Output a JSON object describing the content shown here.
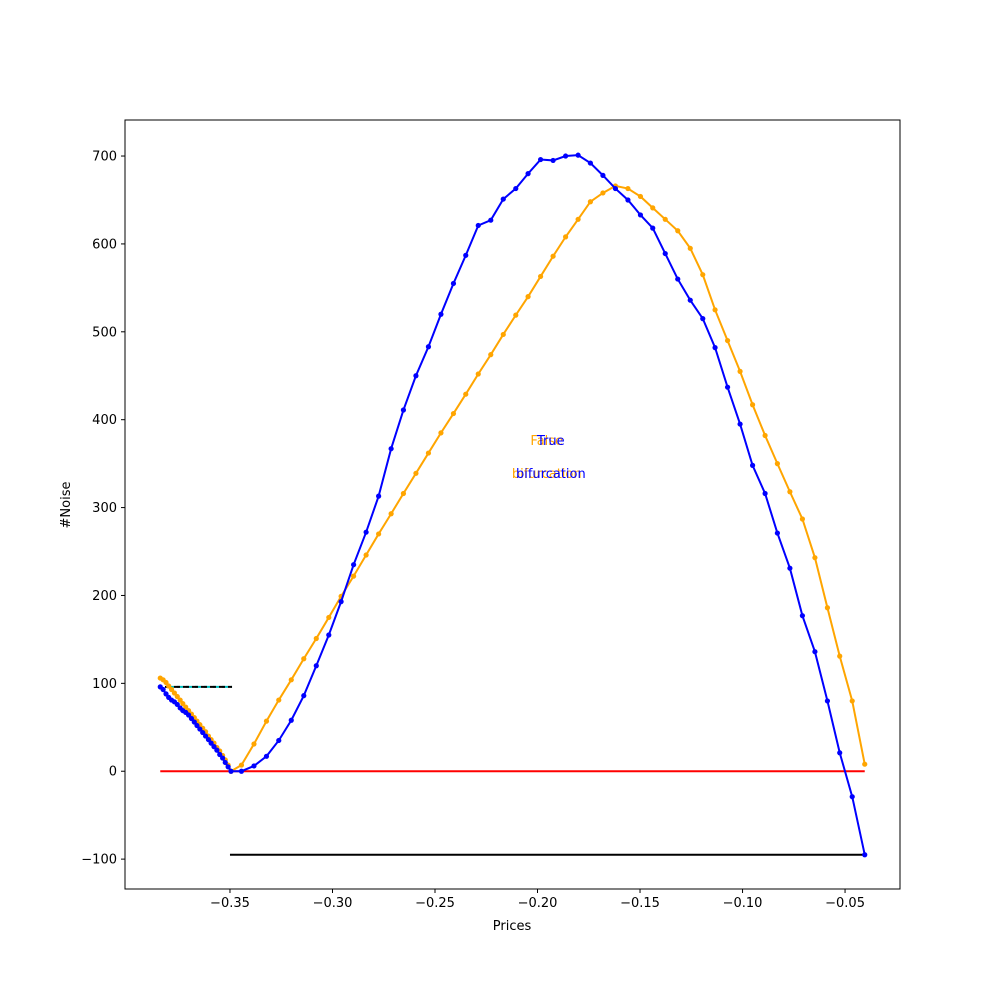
{
  "chart_data": {
    "type": "line",
    "xlabel": "Prices",
    "ylabel": "#Noise",
    "xlim": [
      -0.4012,
      -0.0232
    ],
    "ylim": [
      -134,
      741
    ],
    "xticks": [
      {
        "value": -0.35,
        "label": "−0.35"
      },
      {
        "value": -0.3,
        "label": "−0.30"
      },
      {
        "value": -0.25,
        "label": "−0.25"
      },
      {
        "value": -0.2,
        "label": "−0.20"
      },
      {
        "value": -0.15,
        "label": "−0.15"
      },
      {
        "value": -0.1,
        "label": "−0.10"
      },
      {
        "value": -0.05,
        "label": "−0.05"
      }
    ],
    "yticks": [
      {
        "value": -100,
        "label": "−100"
      },
      0,
      100,
      200,
      300,
      400,
      500,
      600,
      700
    ],
    "x": [
      -0.384,
      -0.3826,
      -0.3812,
      -0.3799,
      -0.3785,
      -0.3771,
      -0.3757,
      -0.3743,
      -0.373,
      -0.3716,
      -0.3702,
      -0.3688,
      -0.3674,
      -0.3661,
      -0.3647,
      -0.3633,
      -0.3619,
      -0.3605,
      -0.3592,
      -0.3578,
      -0.3564,
      -0.355,
      -0.3536,
      -0.3523,
      -0.3509,
      -0.3495,
      -0.3444,
      -0.3383,
      -0.3322,
      -0.3262,
      -0.3201,
      -0.314,
      -0.3079,
      -0.3018,
      -0.2958,
      -0.2897,
      -0.2836,
      -0.2775,
      -0.2714,
      -0.2654,
      -0.2593,
      -0.2532,
      -0.2471,
      -0.241,
      -0.235,
      -0.2289,
      -0.2228,
      -0.2167,
      -0.2106,
      -0.2046,
      -0.1985,
      -0.1924,
      -0.1863,
      -0.1802,
      -0.1742,
      -0.1681,
      -0.162,
      -0.1559,
      -0.1498,
      -0.1438,
      -0.1377,
      -0.1316,
      -0.1255,
      -0.1194,
      -0.1134,
      -0.1073,
      -0.1012,
      -0.0951,
      -0.089,
      -0.083,
      -0.0769,
      -0.0708,
      -0.0647,
      -0.0586,
      -0.0526,
      -0.0465,
      -0.0404
    ],
    "reference_lines": [
      {
        "y": 0,
        "x0": -0.384,
        "x1": -0.0404,
        "color": "#ff0000"
      },
      {
        "y": -95,
        "x0": -0.35,
        "x1": -0.0404,
        "color": "#000000"
      },
      {
        "y": 96,
        "x0": -0.3817,
        "x1": -0.349,
        "color": "#000000",
        "dash_color": "#00bfbf"
      }
    ],
    "series": [
      {
        "color": "#ffa500",
        "values": [
          106,
          104,
          101,
          97,
          93,
          89,
          85,
          81,
          77,
          73,
          69,
          65,
          61,
          57,
          53,
          49,
          45,
          40,
          36,
          32,
          27,
          23,
          18,
          13,
          7,
          0,
          7,
          31,
          57,
          81,
          104,
          128,
          151,
          175,
          199,
          222,
          246,
          270,
          293,
          316,
          339,
          362,
          385,
          407,
          429,
          452,
          474,
          497,
          519,
          540,
          563,
          586,
          608,
          628,
          648,
          658,
          666,
          663,
          654,
          641,
          628,
          615,
          595,
          565,
          525,
          490,
          455,
          417,
          382,
          350,
          318,
          287,
          243,
          186,
          131,
          80,
          8
        ]
      },
      {
        "color": "#0000ff",
        "values": [
          96,
          93,
          88,
          84,
          81,
          79,
          76,
          72,
          69,
          67,
          64,
          60,
          56,
          52,
          48,
          44,
          40,
          36,
          32,
          28,
          24,
          19,
          15,
          10,
          5,
          0,
          0,
          6,
          17,
          35,
          58,
          86,
          120,
          155,
          193,
          235,
          272,
          313,
          367,
          411,
          450,
          483,
          520,
          555,
          587,
          621,
          627,
          651,
          663,
          680,
          696,
          695,
          700,
          701,
          692,
          678,
          663,
          650,
          633,
          618,
          589,
          560,
          536,
          515,
          482,
          437,
          395,
          348,
          316,
          271,
          231,
          177,
          136,
          80,
          21,
          -29,
          -95
        ]
      }
    ],
    "annotations": [
      {
        "lines": [
          "False",
          "bifurcation"
        ],
        "x": -0.1955,
        "y": 358,
        "color": "#ffa500"
      },
      {
        "lines": [
          "True",
          "bifurcation"
        ],
        "x": -0.1935,
        "y": 358,
        "color": "#0000ff"
      }
    ]
  }
}
